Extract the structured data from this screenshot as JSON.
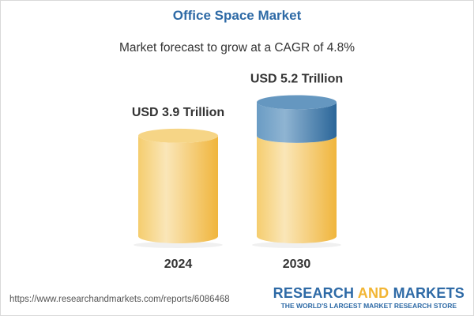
{
  "title": "Office Space Market",
  "subtitle": "Market forecast to grow at a CAGR of 4.8%",
  "chart_data": {
    "type": "bar",
    "style": "3d-cylinder",
    "categories": [
      "2024",
      "2030"
    ],
    "values": [
      3.9,
      5.2
    ],
    "data_labels": [
      "USD 3.9 Trillion",
      "USD 5.2 Trillion"
    ],
    "unit": "USD Trillion",
    "colors": {
      "base": "#f2b533",
      "growth": "#2e6aa6"
    }
  },
  "footer": {
    "url": "https://www.researchandmarkets.com/reports/6086468",
    "logo_part1": "RESEARCH ",
    "logo_part2": "AND",
    "logo_part3": " MARKETS",
    "logo_tagline": "THE WORLD'S LARGEST MARKET RESEARCH STORE"
  }
}
